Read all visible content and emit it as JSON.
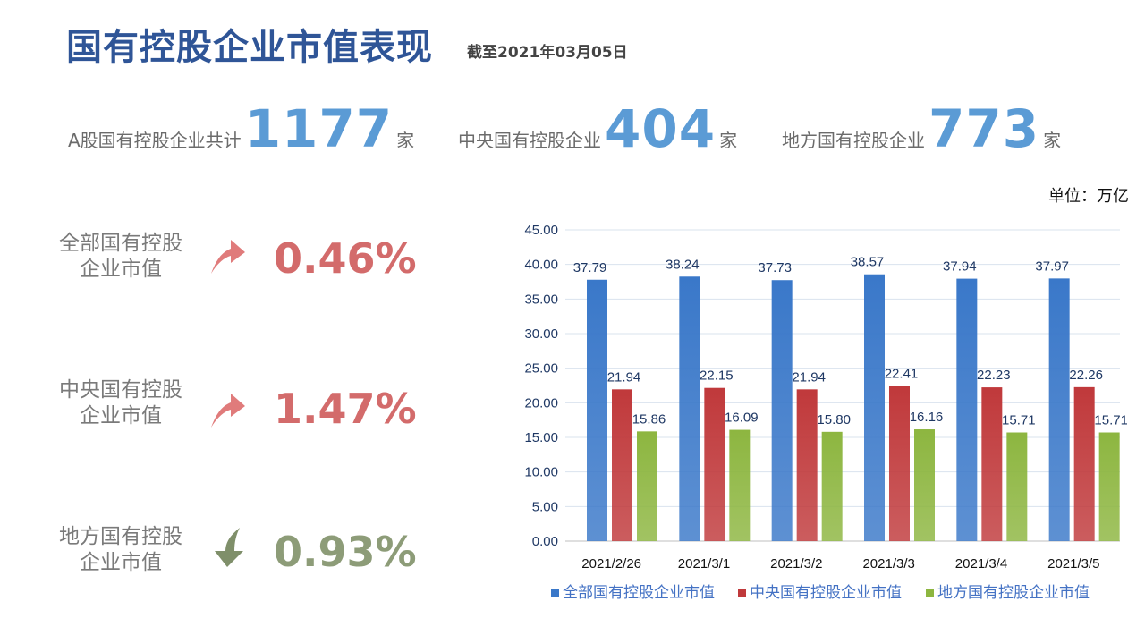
{
  "header": {
    "title": "国有控股企业市值表现",
    "as_of": "截至2021年03月05日"
  },
  "stats": [
    {
      "label": "A股国有控股企业共计",
      "value": "1177",
      "unit": "家"
    },
    {
      "label": "中央国有控股企业",
      "value": "404",
      "unit": "家"
    },
    {
      "label": "地方国有控股企业",
      "value": "773",
      "unit": "家"
    }
  ],
  "changes": [
    {
      "label_line1": "全部国有控股",
      "label_line2": "企业市值",
      "direction": "up",
      "value": "0.46%",
      "color": "#d36b6b"
    },
    {
      "label_line1": "中央国有控股",
      "label_line2": "企业市值",
      "direction": "up",
      "value": "1.47%",
      "color": "#d36b6b"
    },
    {
      "label_line1": "地方国有控股",
      "label_line2": "企业市值",
      "direction": "down",
      "value": "0.93%",
      "color": "#8d9c78"
    }
  ],
  "unit_note": "单位：万亿",
  "chart_data": {
    "type": "bar",
    "categories": [
      "2021/2/26",
      "2021/3/1",
      "2021/3/2",
      "2021/3/3",
      "2021/3/4",
      "2021/3/5"
    ],
    "series": [
      {
        "name": "全部国有控股企业市值",
        "color": "#3a78c9",
        "values": [
          37.79,
          38.24,
          37.73,
          38.57,
          37.94,
          37.97
        ]
      },
      {
        "name": "中央国有控股企业市值",
        "color": "#c0393b",
        "values": [
          21.94,
          22.15,
          21.94,
          22.41,
          22.23,
          22.26
        ]
      },
      {
        "name": "地方国有控股企业市值",
        "color": "#8db640",
        "values": [
          15.86,
          16.09,
          15.8,
          16.16,
          15.71,
          15.71
        ]
      }
    ],
    "ylim": [
      0,
      45
    ],
    "yticks": [
      "0.00",
      "5.00",
      "10.00",
      "15.00",
      "20.00",
      "25.00",
      "30.00",
      "35.00",
      "40.00",
      "45.00"
    ],
    "grid": true,
    "legend": "bottom",
    "data_labels": true
  }
}
